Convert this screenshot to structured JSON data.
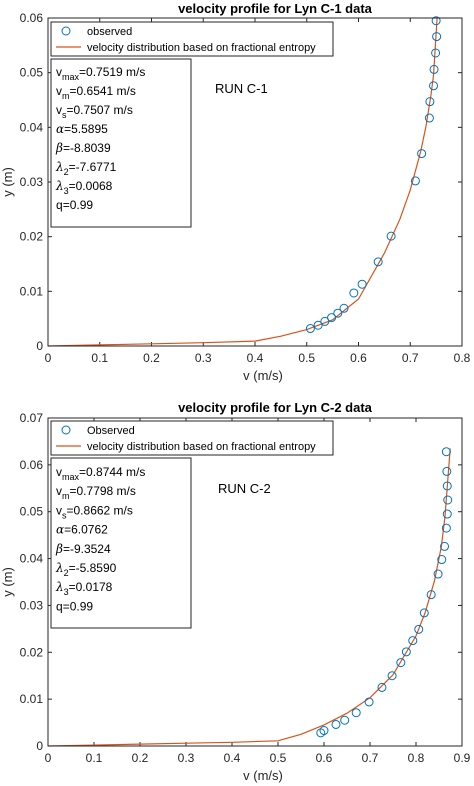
{
  "chart_data": [
    {
      "type": "scatter",
      "title": "velocity profile for Lyn C-1 data",
      "xlabel": "v (m/s)",
      "ylabel": "y (m)",
      "xlim": [
        0,
        0.8
      ],
      "ylim": [
        0,
        0.06
      ],
      "xticks": [
        0,
        0.1,
        0.2,
        0.3,
        0.4,
        0.5,
        0.6,
        0.7,
        0.8
      ],
      "xtick_labels": [
        "0",
        "0.1",
        "0.2",
        "0.3",
        "0.4",
        "0.5",
        "0.6",
        "0.7",
        "0.8"
      ],
      "yticks": [
        0,
        0.01,
        0.02,
        0.03,
        0.04,
        0.05,
        0.06
      ],
      "ytick_labels": [
        "0",
        "0.01",
        "0.02",
        "0.03",
        "0.04",
        "0.05",
        "0.06"
      ],
      "grid": false,
      "legend_position": "top-left",
      "series": [
        {
          "name": "observed",
          "kind": "markers",
          "marker": "circle",
          "color": "#0072BD",
          "points": [
            [
              0.507,
              0.0032
            ],
            [
              0.522,
              0.0038
            ],
            [
              0.535,
              0.0045
            ],
            [
              0.548,
              0.0052
            ],
            [
              0.56,
              0.006
            ],
            [
              0.572,
              0.0069
            ],
            [
              0.591,
              0.0097
            ],
            [
              0.607,
              0.0113
            ],
            [
              0.638,
              0.0154
            ],
            [
              0.663,
              0.0201
            ],
            [
              0.71,
              0.0302
            ],
            [
              0.722,
              0.0352
            ],
            [
              0.737,
              0.0417
            ],
            [
              0.738,
              0.0447
            ],
            [
              0.745,
              0.0476
            ],
            [
              0.746,
              0.0506
            ],
            [
              0.749,
              0.0536
            ],
            [
              0.751,
              0.0566
            ],
            [
              0.75,
              0.0595
            ]
          ]
        },
        {
          "name": "velocity distribution based on fractional entropy",
          "kind": "line",
          "color": "#D95319",
          "points": [
            [
              0,
              0
            ],
            [
              0.1,
              0.0002
            ],
            [
              0.2,
              0.0004
            ],
            [
              0.3,
              0.0006
            ],
            [
              0.4,
              0.0009
            ],
            [
              0.45,
              0.0018
            ],
            [
              0.5,
              0.003
            ],
            [
              0.55,
              0.0048
            ],
            [
              0.6,
              0.0086
            ],
            [
              0.65,
              0.017
            ],
            [
              0.68,
              0.0232
            ],
            [
              0.7,
              0.0285
            ],
            [
              0.72,
              0.0355
            ],
            [
              0.73,
              0.04
            ],
            [
              0.74,
              0.0458
            ],
            [
              0.745,
              0.0495
            ],
            [
              0.7519,
              0.06
            ]
          ]
        }
      ],
      "params": {
        "line1": {
          "sym": "v",
          "sub": "max",
          "val": "=0.7519 m/s"
        },
        "line2": {
          "sym": "v",
          "sub": "m",
          "val": "=0.6541 m/s"
        },
        "line3": {
          "sym": "v",
          "sub": "s",
          "val": "=0.7507 m/s"
        },
        "line4": {
          "sym": "α",
          "sub": "",
          "val": "=5.5895"
        },
        "line5": {
          "sym": "β",
          "sub": "",
          "val": "=-8.8039"
        },
        "line6": {
          "sym": "λ",
          "sub": "2",
          "val": "=-7.6771"
        },
        "line7": {
          "sym": "λ",
          "sub": "3",
          "val": "=0.0068"
        },
        "line8": {
          "sym": "q",
          "sub": "",
          "val": "=0.99"
        }
      },
      "run_label": "RUN C-1"
    },
    {
      "type": "scatter",
      "title": "velocity profile for Lyn C-2 data",
      "xlabel": "v (m/s)",
      "ylabel": "y (m)",
      "xlim": [
        0,
        0.9
      ],
      "ylim": [
        0,
        0.07
      ],
      "xticks": [
        0,
        0.1,
        0.2,
        0.3,
        0.4,
        0.5,
        0.6,
        0.7,
        0.8,
        0.9
      ],
      "xtick_labels": [
        "0",
        "0.1",
        "0.2",
        "0.3",
        "0.4",
        "0.5",
        "0.6",
        "0.7",
        "0.8",
        "0.9"
      ],
      "yticks": [
        0,
        0.01,
        0.02,
        0.03,
        0.04,
        0.05,
        0.06,
        0.07
      ],
      "ytick_labels": [
        "0",
        "0.01",
        "0.02",
        "0.03",
        "0.04",
        "0.05",
        "0.06",
        "0.07"
      ],
      "grid": false,
      "legend_position": "top-left",
      "series": [
        {
          "name": "Observed",
          "kind": "markers",
          "marker": "circle",
          "color": "#0072BD",
          "points": [
            [
              0.593,
              0.0028
            ],
            [
              0.6,
              0.0033
            ],
            [
              0.626,
              0.0046
            ],
            [
              0.645,
              0.0055
            ],
            [
              0.67,
              0.0071
            ],
            [
              0.698,
              0.0094
            ],
            [
              0.726,
              0.0125
            ],
            [
              0.748,
              0.015
            ],
            [
              0.767,
              0.0178
            ],
            [
              0.779,
              0.0201
            ],
            [
              0.793,
              0.0225
            ],
            [
              0.806,
              0.0249
            ],
            [
              0.818,
              0.0284
            ],
            [
              0.833,
              0.0323
            ],
            [
              0.848,
              0.0367
            ],
            [
              0.856,
              0.0398
            ],
            [
              0.862,
              0.0426
            ],
            [
              0.866,
              0.0465
            ],
            [
              0.868,
              0.0495
            ],
            [
              0.869,
              0.0525
            ],
            [
              0.868,
              0.0555
            ],
            [
              0.867,
              0.0586
            ],
            [
              0.866,
              0.0628
            ]
          ]
        },
        {
          "name": "velocity distribution based on fractional entropy",
          "kind": "line",
          "color": "#D95319",
          "points": [
            [
              0,
              0
            ],
            [
              0.1,
              0.0002
            ],
            [
              0.2,
              0.0004
            ],
            [
              0.3,
              0.0006
            ],
            [
              0.4,
              0.0008
            ],
            [
              0.5,
              0.0011
            ],
            [
              0.55,
              0.0025
            ],
            [
              0.6,
              0.0045
            ],
            [
              0.65,
              0.007
            ],
            [
              0.7,
              0.0103
            ],
            [
              0.75,
              0.0152
            ],
            [
              0.8,
              0.0235
            ],
            [
              0.82,
              0.0285
            ],
            [
              0.84,
              0.0352
            ],
            [
              0.855,
              0.0425
            ],
            [
              0.863,
              0.049
            ],
            [
              0.8744,
              0.0635
            ]
          ]
        }
      ],
      "params": {
        "line1": {
          "sym": "v",
          "sub": "max",
          "val": "=0.8744 m/s"
        },
        "line2": {
          "sym": "v",
          "sub": "m",
          "val": "=0.7798 m/s"
        },
        "line3": {
          "sym": "v",
          "sub": "s",
          "val": "=0.8662 m/s"
        },
        "line4": {
          "sym": "α",
          "sub": "",
          "val": "=6.0762"
        },
        "line5": {
          "sym": "β",
          "sub": "",
          "val": "=-9.3524"
        },
        "line6": {
          "sym": "λ",
          "sub": "2",
          "val": "=-5.8590"
        },
        "line7": {
          "sym": "λ",
          "sub": "3",
          "val": "=0.0178"
        },
        "line8": {
          "sym": "q",
          "sub": "",
          "val": "=0.99"
        }
      },
      "run_label": "RUN C-2"
    }
  ]
}
